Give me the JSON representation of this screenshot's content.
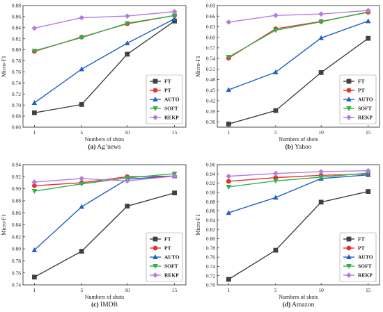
{
  "colors": {
    "FT": "#404040",
    "PT": "#e8312a",
    "AUTO": "#1f5fc8",
    "SOFT": "#2fb14b",
    "REKP": "#b57be0"
  },
  "chart_data": [
    {
      "type": "line",
      "caption_label": "(a)",
      "caption_name": "Ag’news",
      "xlabel": "Numbers of shots",
      "ylabel": "Micro-F1",
      "x": [
        1,
        5,
        10,
        15
      ],
      "ylim": [
        0.66,
        0.88
      ],
      "yticks": [
        "0.66",
        "0.68",
        "0.70",
        "0.72",
        "0.74",
        "0.76",
        "0.78",
        "0.80",
        "0.82",
        "0.84",
        "0.86",
        "0.88"
      ],
      "legend": "bottom-right",
      "series": [
        {
          "name": "FT",
          "marker": "square",
          "values": [
            0.686,
            0.701,
            0.792,
            0.852
          ]
        },
        {
          "name": "PT",
          "marker": "circle",
          "values": [
            0.797,
            0.823,
            0.847,
            0.862
          ]
        },
        {
          "name": "AUTO",
          "marker": "triangle-up",
          "values": [
            0.704,
            0.765,
            0.812,
            0.856
          ]
        },
        {
          "name": "SOFT",
          "marker": "triangle-down",
          "values": [
            0.798,
            0.822,
            0.848,
            0.862
          ]
        },
        {
          "name": "REKP",
          "marker": "diamond",
          "values": [
            0.839,
            0.858,
            0.861,
            0.869
          ]
        }
      ]
    },
    {
      "type": "line",
      "caption_label": "(b)",
      "caption_name": "Yahoo",
      "xlabel": "Numbers of shots",
      "ylabel": "Micro-F1",
      "x": [
        1,
        5,
        10,
        15
      ],
      "ylim": [
        0.345,
        0.69
      ],
      "yticks": [
        "0.36",
        "0.39",
        "0.42",
        "0.45",
        "0.48",
        "0.51",
        "0.54",
        "0.57",
        "0.60",
        "0.63",
        "0.66",
        "0.69"
      ],
      "legend": "bottom-right",
      "series": [
        {
          "name": "FT",
          "marker": "square",
          "values": [
            0.354,
            0.392,
            0.5,
            0.597
          ]
        },
        {
          "name": "PT",
          "marker": "circle",
          "values": [
            0.541,
            0.624,
            0.645,
            0.671
          ]
        },
        {
          "name": "AUTO",
          "marker": "triangle-up",
          "values": [
            0.451,
            0.501,
            0.598,
            0.646
          ]
        },
        {
          "name": "SOFT",
          "marker": "triangle-down",
          "values": [
            0.544,
            0.62,
            0.644,
            0.672
          ]
        },
        {
          "name": "REKP",
          "marker": "diamond",
          "values": [
            0.643,
            0.662,
            0.666,
            0.676
          ]
        }
      ]
    },
    {
      "type": "line",
      "caption_label": "(c)",
      "caption_name": "IMDB",
      "xlabel": "Numbers of shots",
      "ylabel": "Micro-F1",
      "x": [
        1,
        5,
        10,
        15
      ],
      "ylim": [
        0.74,
        0.94
      ],
      "yticks": [
        "0.74",
        "0.76",
        "0.78",
        "0.80",
        "0.82",
        "0.84",
        "0.86",
        "0.88",
        "0.90",
        "0.92",
        "0.94"
      ],
      "legend": "bottom-right",
      "series": [
        {
          "name": "FT",
          "marker": "square",
          "values": [
            0.753,
            0.796,
            0.871,
            0.893
          ]
        },
        {
          "name": "PT",
          "marker": "circle",
          "values": [
            0.905,
            0.91,
            0.92,
            0.921
          ]
        },
        {
          "name": "AUTO",
          "marker": "triangle-up",
          "values": [
            0.798,
            0.87,
            0.916,
            0.921
          ]
        },
        {
          "name": "SOFT",
          "marker": "triangle-down",
          "values": [
            0.896,
            0.908,
            0.918,
            0.925
          ]
        },
        {
          "name": "REKP",
          "marker": "diamond",
          "values": [
            0.911,
            0.917,
            0.913,
            0.921
          ]
        }
      ]
    },
    {
      "type": "line",
      "caption_label": "(d)",
      "caption_name": "Amazon",
      "xlabel": "Numbers of shots",
      "ylabel": "Micro-F1",
      "x": [
        1,
        5,
        10,
        15
      ],
      "ylim": [
        0.7,
        0.96
      ],
      "yticks": [
        "0.70",
        "0.72",
        "0.74",
        "0.76",
        "0.78",
        "0.80",
        "0.82",
        "0.84",
        "0.86",
        "0.88",
        "0.90",
        "0.92",
        "0.94",
        "0.96"
      ],
      "legend": "bottom-right",
      "series": [
        {
          "name": "FT",
          "marker": "square",
          "values": [
            0.712,
            0.775,
            0.879,
            0.902
          ]
        },
        {
          "name": "PT",
          "marker": "circle",
          "values": [
            0.924,
            0.932,
            0.937,
            0.94
          ]
        },
        {
          "name": "AUTO",
          "marker": "triangle-up",
          "values": [
            0.856,
            0.889,
            0.93,
            0.938
          ]
        },
        {
          "name": "SOFT",
          "marker": "triangle-down",
          "values": [
            0.912,
            0.925,
            0.933,
            0.942
          ]
        },
        {
          "name": "REKP",
          "marker": "diamond",
          "values": [
            0.935,
            0.941,
            0.945,
            0.947
          ]
        }
      ]
    }
  ]
}
